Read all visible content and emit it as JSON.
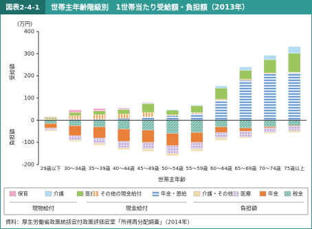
{
  "chart_data": {
    "type": "stacked_bar",
    "figure_label": "図表2-4-1",
    "title": "世帯主年齢階級別　1世帯当たり受給額・負担額（2013年）",
    "y_unit": "(万円)",
    "y_label_positive": "受給額",
    "y_label_negative": "負担額",
    "x_label": "世帯主年齢",
    "categories": [
      "29歳以下",
      "30～34歳",
      "35～39歳",
      "40～44歳",
      "45～49歳",
      "50～54歳",
      "55～59歳",
      "60～64歳",
      "65～69歳",
      "70～74歳",
      "75歳以上"
    ],
    "ylim": [
      -200,
      400
    ],
    "yticks": [
      -200,
      -100,
      0,
      100,
      200,
      300,
      400
    ],
    "series": [
      {
        "name": "保育",
        "color": "#f3a8c9",
        "pattern": "solid",
        "values": [
          3,
          12,
          10,
          5,
          2,
          0,
          0,
          0,
          0,
          0,
          0
        ]
      },
      {
        "name": "介護",
        "color": "#b3dcf3",
        "pattern": "solid",
        "values": [
          0,
          0,
          1,
          2,
          3,
          3,
          3,
          10,
          15,
          20,
          30
        ]
      },
      {
        "name": "医療",
        "color": "#9cc65f",
        "pattern": "solid",
        "values": [
          5,
          15,
          17,
          20,
          40,
          20,
          30,
          50,
          40,
          60,
          85
        ]
      },
      {
        "name": "その他の現金給付",
        "color": "#f3a35a",
        "pattern": "vstripes",
        "values": [
          5,
          15,
          20,
          20,
          20,
          5,
          5,
          5,
          5,
          3,
          2
        ]
      },
      {
        "name": "年金・恩給",
        "color": "#6f9fd6",
        "pattern": "hstripes",
        "values": [
          2,
          5,
          5,
          8,
          15,
          20,
          30,
          90,
          180,
          210,
          215
        ]
      },
      {
        "name": "介護・その他",
        "color": "#f1dcae",
        "pattern": "solid",
        "values": [
          -4,
          -5,
          -7,
          -8,
          -10,
          -10,
          -10,
          -10,
          -5,
          -5,
          -7
        ]
      },
      {
        "name": "医療",
        "color": "#b79fd2",
        "pattern": "dots",
        "values": [
          -10,
          -20,
          -25,
          -30,
          -30,
          -35,
          -30,
          -25,
          -25,
          -20,
          -20
        ]
      },
      {
        "name": "年金",
        "color": "#e9803a",
        "pattern": "solid",
        "values": [
          -20,
          -45,
          -50,
          -55,
          -55,
          -55,
          -45,
          -25,
          -15,
          -5,
          -3
        ]
      },
      {
        "name": "税金",
        "color": "#5fae9c",
        "pattern": "hatch",
        "values": [
          -15,
          -25,
          -30,
          -40,
          -45,
          -60,
          -55,
          -30,
          -35,
          -30,
          -25
        ]
      }
    ],
    "legend_groups": [
      "現物給付",
      "現金給付",
      "負担額"
    ],
    "source": "資料：厚生労働省政策統括官付政策評価官室「所得再分配調査」（2014年）"
  }
}
